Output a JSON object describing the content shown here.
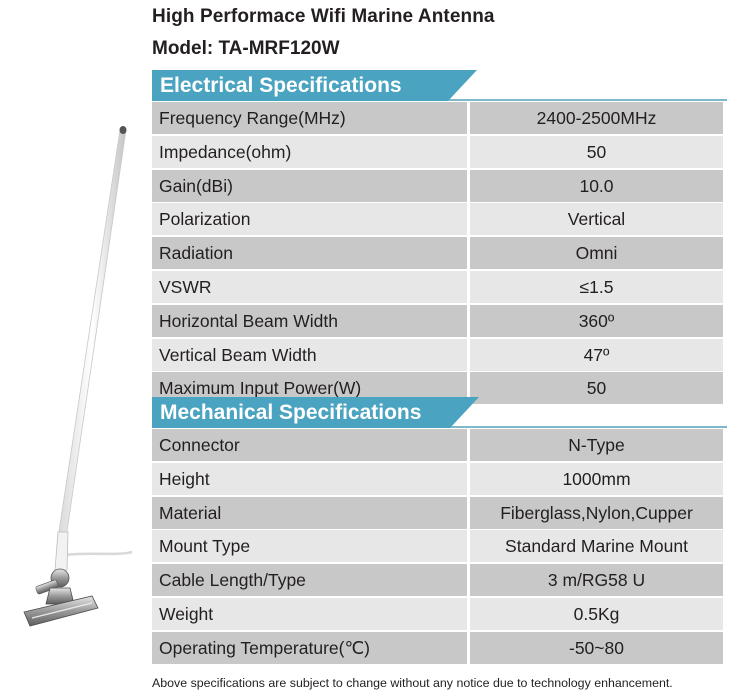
{
  "header": {
    "title": "High Performace Wifi Marine Antenna",
    "model": "Model: TA-MRF120W"
  },
  "electrical": {
    "heading": "Electrical Specifications",
    "rows": [
      {
        "label": "Frequency Range(MHz)",
        "value": "2400-2500MHz"
      },
      {
        "label": "Impedance(ohm)",
        "value": "50"
      },
      {
        "label": "Gain(dBi)",
        "value": "10.0"
      },
      {
        "label": "Polarization",
        "value": "Vertical"
      },
      {
        "label": "Radiation",
        "value": "Omni"
      },
      {
        "label": "VSWR",
        "value": "≤1.5"
      },
      {
        "label": "Horizontal Beam Width",
        "value": "360º"
      },
      {
        "label": "Vertical Beam Width",
        "value": "47º"
      },
      {
        "label": "Maximum Input Power(W)",
        "value": "50"
      }
    ]
  },
  "mechanical": {
    "heading": "Mechanical Specifications",
    "rows": [
      {
        "label": "Connector",
        "value": "N-Type"
      },
      {
        "label": "Height",
        "value": "1000mm"
      },
      {
        "label": "Material",
        "value": "Fiberglass,Nylon,Cupper"
      },
      {
        "label": "Mount Type",
        "value": "Standard Marine Mount"
      },
      {
        "label": "Cable Length/Type",
        "value": "3 m/RG58 U"
      },
      {
        "label": "Weight",
        "value": "0.5Kg"
      },
      {
        "label": "Operating Temperature(℃)",
        "value": "-50~80"
      }
    ]
  },
  "footnote": "Above specifications are subject to change without any notice due to technology enhancement.",
  "colors": {
    "accent": "#4aa3c0",
    "row_dark": "#c8c8c9",
    "row_light": "#e7e7e8"
  },
  "image": {
    "icon": "marine-antenna-icon"
  }
}
